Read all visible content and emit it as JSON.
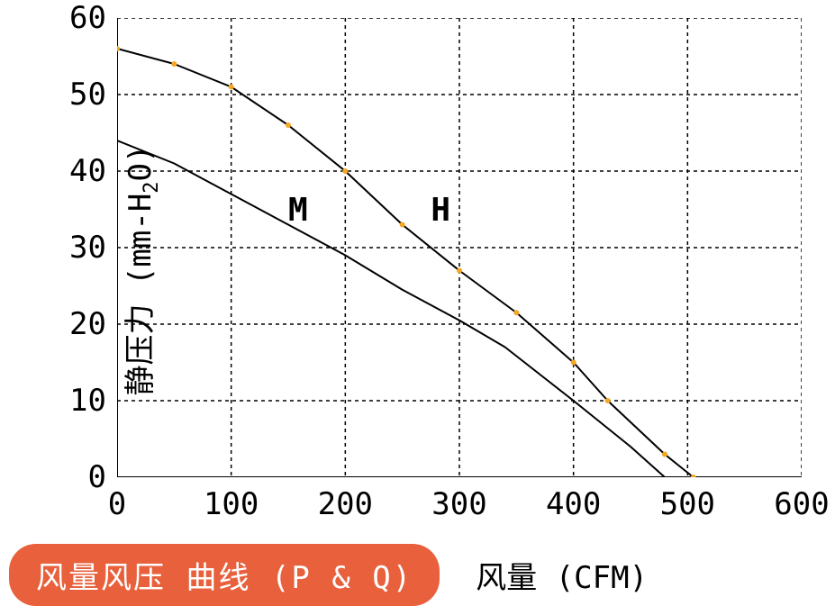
{
  "chart": {
    "type": "line",
    "title_badge": "风量风压 曲线 (P & Q)",
    "title_badge_bg": "#e8603c",
    "title_badge_color": "#ffffff",
    "x_label": "风量 (CFM)",
    "y_label": "静压力 (mm-H₂O)",
    "y_label_raw": "静压力 (mm-H",
    "y_label_sub": "2",
    "y_label_end": "O)",
    "xlim": [
      0,
      600
    ],
    "ylim": [
      0,
      60
    ],
    "x_ticks": [
      0,
      100,
      200,
      300,
      400,
      500,
      600
    ],
    "y_ticks": [
      0,
      10,
      20,
      30,
      40,
      50,
      60
    ],
    "background_color": "#ffffff",
    "grid_color": "#000000",
    "grid_dash": "4,4",
    "axis_color": "#000000",
    "axis_width": 2,
    "tick_fontsize": 34,
    "label_fontsize": 34,
    "series": [
      {
        "name": "H",
        "label": "H",
        "label_x": 275,
        "label_y": 35,
        "color": "#000000",
        "line_width": 2,
        "marker_color": "#f5a623",
        "marker_size": 3,
        "data": [
          [
            0,
            56
          ],
          [
            50,
            54
          ],
          [
            100,
            51
          ],
          [
            150,
            46
          ],
          [
            200,
            40
          ],
          [
            250,
            33
          ],
          [
            300,
            27
          ],
          [
            350,
            21.5
          ],
          [
            400,
            15
          ],
          [
            430,
            10
          ],
          [
            480,
            3
          ],
          [
            505,
            0
          ]
        ]
      },
      {
        "name": "M",
        "label": "M",
        "label_x": 150,
        "label_y": 35,
        "color": "#000000",
        "line_width": 2,
        "data": [
          [
            0,
            44
          ],
          [
            50,
            41
          ],
          [
            100,
            37
          ],
          [
            150,
            33
          ],
          [
            200,
            29
          ],
          [
            250,
            24.5
          ],
          [
            300,
            20.5
          ],
          [
            340,
            17
          ],
          [
            400,
            10
          ],
          [
            450,
            4
          ],
          [
            480,
            0
          ]
        ]
      }
    ]
  }
}
